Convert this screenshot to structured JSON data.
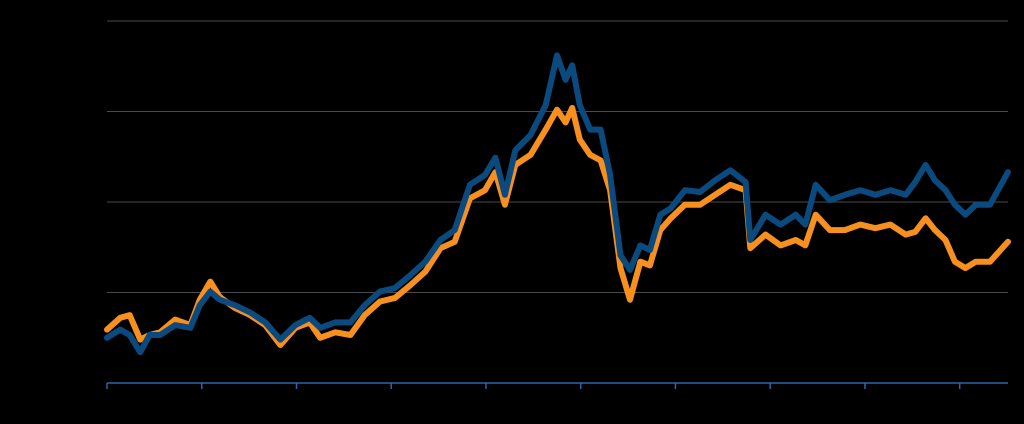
{
  "chart_data": {
    "type": "line",
    "x": [
      0,
      1.4,
      2.4,
      3.5,
      4.5,
      5.6,
      7.2,
      8.8,
      9.8,
      10.9,
      11.9,
      13.5,
      15.1,
      16.7,
      18.3,
      19.9,
      21.4,
      22.5,
      24.1,
      25.7,
      27.2,
      28.8,
      30.4,
      32.0,
      33.6,
      35.2,
      36.7,
      38.3,
      39.9,
      41.0,
      42.0,
      43.1,
      44.7,
      46.3,
      47.5,
      48.4,
      49.1,
      49.9,
      51.0,
      52.1,
      53.1,
      54.2,
      55.2,
      56.3,
      57.3,
      58.4,
      59.5,
      61.0,
      62.6,
      64.2,
      65.8,
      67.4,
      67.9,
      69.5,
      71.1,
      72.7,
      73.7,
      74.8,
      76.3,
      77.9,
      79.5,
      81.1,
      82.7,
      84.3,
      85.3,
      86.4,
      87.4,
      88.5,
      89.5,
      90.6,
      91.7,
      93.2,
      95.1
    ],
    "series": [
      {
        "color": "#f7901e",
        "values": [
          0.59,
          0.72,
          0.75,
          0.48,
          0.53,
          0.56,
          0.7,
          0.64,
          0.92,
          1.12,
          0.95,
          0.83,
          0.75,
          0.64,
          0.42,
          0.61,
          0.67,
          0.5,
          0.56,
          0.53,
          0.75,
          0.9,
          0.94,
          1.08,
          1.23,
          1.49,
          1.56,
          2.04,
          2.13,
          2.33,
          1.97,
          2.41,
          2.52,
          2.8,
          3.02,
          2.88,
          3.04,
          2.69,
          2.52,
          2.46,
          2.13,
          1.27,
          0.92,
          1.34,
          1.3,
          1.69,
          1.82,
          1.97,
          1.97,
          2.08,
          2.19,
          2.13,
          1.49,
          1.64,
          1.52,
          1.58,
          1.52,
          1.86,
          1.69,
          1.69,
          1.75,
          1.71,
          1.75,
          1.64,
          1.67,
          1.82,
          1.69,
          1.58,
          1.34,
          1.27,
          1.34,
          1.34,
          1.56
        ]
      },
      {
        "color": "#0b4a7e",
        "values": [
          0.5,
          0.59,
          0.53,
          0.34,
          0.53,
          0.53,
          0.64,
          0.61,
          0.86,
          1.01,
          0.92,
          0.86,
          0.78,
          0.67,
          0.48,
          0.64,
          0.72,
          0.61,
          0.67,
          0.67,
          0.86,
          1.01,
          1.05,
          1.19,
          1.34,
          1.58,
          1.69,
          2.19,
          2.3,
          2.49,
          2.08,
          2.57,
          2.74,
          3.07,
          3.62,
          3.35,
          3.51,
          3.07,
          2.8,
          2.8,
          2.3,
          1.41,
          1.25,
          1.52,
          1.47,
          1.86,
          1.93,
          2.13,
          2.11,
          2.24,
          2.35,
          2.22,
          1.58,
          1.86,
          1.75,
          1.86,
          1.75,
          2.19,
          2.02,
          2.08,
          2.13,
          2.08,
          2.13,
          2.08,
          2.22,
          2.41,
          2.24,
          2.13,
          1.97,
          1.86,
          1.97,
          1.97,
          2.33
        ]
      }
    ],
    "xlim": [
      0,
      95.1
    ],
    "xticks": [
      0,
      10,
      20,
      30,
      40,
      50,
      60,
      70,
      80,
      90
    ],
    "ylim": [
      0,
      4
    ],
    "yticks": [
      0,
      1,
      2,
      3,
      4
    ],
    "grid": true
  }
}
